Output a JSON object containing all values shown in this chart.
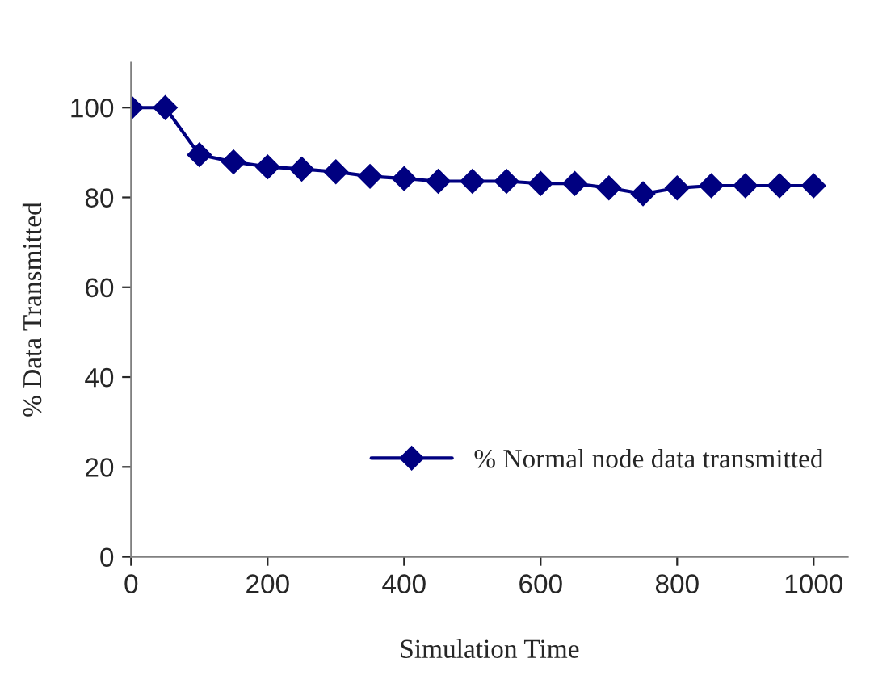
{
  "chart_data": {
    "type": "line",
    "xlabel": "Simulation Time",
    "ylabel": "% Data Transmitted",
    "x": [
      0,
      50,
      100,
      150,
      200,
      250,
      300,
      350,
      400,
      450,
      500,
      550,
      600,
      650,
      700,
      750,
      800,
      850,
      900,
      950,
      1000
    ],
    "series": [
      {
        "name": "% Normal node data transmitted",
        "color": "#000080",
        "values": [
          100,
          100,
          89.5,
          87.9,
          86.8,
          86.3,
          85.7,
          84.7,
          84.2,
          83.6,
          83.6,
          83.6,
          83.1,
          83.1,
          82.1,
          80.8,
          82.1,
          82.6,
          82.6,
          82.6,
          82.6
        ]
      }
    ],
    "xlim": [
      0,
      1050
    ],
    "xticks": [
      0,
      200,
      400,
      600,
      800,
      1000
    ],
    "ylim": [
      0,
      110
    ],
    "yticks": [
      0,
      20,
      40,
      60,
      80,
      100
    ],
    "marker": "diamond",
    "line_style": "solid",
    "grid": false,
    "legend": "bottom right"
  }
}
